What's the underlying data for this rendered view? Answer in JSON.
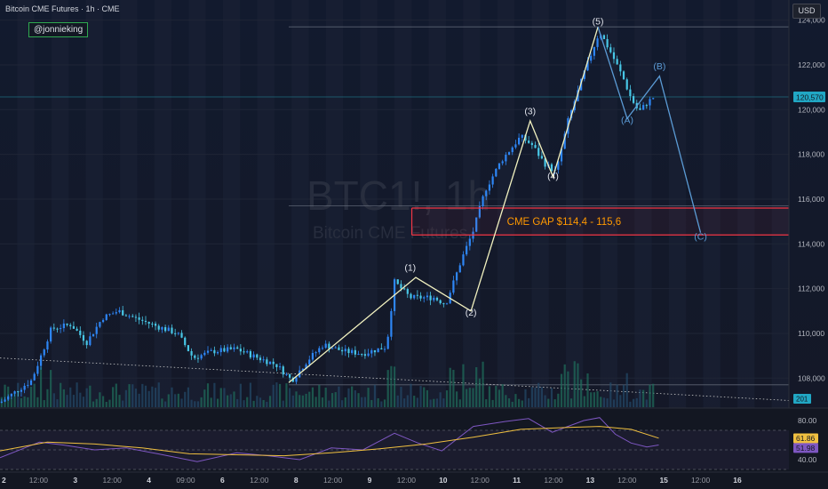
{
  "header": {
    "title": "Bitcoin CME Futures · 1h · CME",
    "author": "@jonnieking",
    "currency": "USD"
  },
  "watermark": {
    "symbol": "BTC1!, 1h",
    "name": "Bitcoin CME Futures"
  },
  "colors": {
    "bull": "#2e86f5",
    "bear": "#48c7e6",
    "wave": "#f2f2c0",
    "corrective": "#5b9bd5",
    "gap": "#f23645",
    "gap_text": "#ff9800",
    "rsi": "#7e57c2",
    "rsi_ma": "#f0c040"
  },
  "chart_data": [
    {
      "type": "candlestick",
      "symbol": "BTC1!",
      "interval": "1h",
      "ylim": [
        106700,
        124900
      ],
      "y_ticks": [
        "124,000",
        "122,000",
        "120,000",
        "118,000",
        "116,000",
        "114,000",
        "112,000",
        "110,000",
        "108,000"
      ],
      "x_ticks": [
        "2",
        "12:00",
        "3",
        "12:00",
        "4",
        "09:00",
        "6",
        "12:00",
        "8",
        "12:00",
        "9",
        "12:00",
        "10",
        "12:00",
        "11",
        "12:00",
        "13",
        "12:00",
        "15",
        "12:00",
        "16"
      ],
      "last_price": "120,570",
      "volume_label": "201",
      "price_path": [
        [
          0,
          106900
        ],
        [
          0.04,
          107900
        ],
        [
          0.065,
          110200
        ],
        [
          0.09,
          110400
        ],
        [
          0.11,
          109600
        ],
        [
          0.13,
          110700
        ],
        [
          0.15,
          111000
        ],
        [
          0.17,
          110700
        ],
        [
          0.2,
          110300
        ],
        [
          0.225,
          110000
        ],
        [
          0.245,
          108900
        ],
        [
          0.27,
          109200
        ],
        [
          0.3,
          109300
        ],
        [
          0.32,
          109000
        ],
        [
          0.35,
          108600
        ],
        [
          0.37,
          107900
        ],
        [
          0.39,
          108800
        ],
        [
          0.41,
          109500
        ],
        [
          0.435,
          109200
        ],
        [
          0.46,
          109100
        ],
        [
          0.49,
          109400
        ],
        [
          0.5,
          112300
        ],
        [
          0.52,
          111600
        ],
        [
          0.55,
          111600
        ],
        [
          0.565,
          111300
        ],
        [
          0.585,
          113300
        ],
        [
          0.6,
          114600
        ],
        [
          0.615,
          116400
        ],
        [
          0.635,
          117700
        ],
        [
          0.66,
          118800
        ],
        [
          0.675,
          118400
        ],
        [
          0.69,
          117600
        ],
        [
          0.705,
          117200
        ],
        [
          0.72,
          119500
        ],
        [
          0.74,
          121600
        ],
        [
          0.76,
          123500
        ],
        [
          0.775,
          122500
        ],
        [
          0.79,
          121400
        ],
        [
          0.8,
          120500
        ],
        [
          0.81,
          119900
        ],
        [
          0.82,
          120300
        ],
        [
          0.83,
          120600
        ]
      ],
      "wave_labels": [
        {
          "label": "(1)",
          "x": 0.52,
          "price": 112800
        },
        {
          "label": "(2)",
          "x": 0.597,
          "price": 110800
        },
        {
          "label": "(3)",
          "x": 0.672,
          "price": 119800
        },
        {
          "label": "(4)",
          "x": 0.701,
          "price": 116900
        },
        {
          "label": "(5)",
          "x": 0.758,
          "price": 123800
        },
        {
          "label": "(A)",
          "x": 0.795,
          "price": 119400
        },
        {
          "label": "(B)",
          "x": 0.836,
          "price": 121800
        },
        {
          "label": "(C)",
          "x": 0.888,
          "price": 114200
        }
      ],
      "impulse_path": [
        [
          0.366,
          107800
        ],
        [
          0.527,
          112500
        ],
        [
          0.597,
          111000
        ],
        [
          0.672,
          119500
        ],
        [
          0.701,
          117000
        ],
        [
          0.758,
          123700
        ]
      ],
      "corrective_path": [
        [
          0.758,
          123700
        ],
        [
          0.795,
          119600
        ],
        [
          0.836,
          121500
        ],
        [
          0.888,
          114500
        ]
      ],
      "gap": {
        "label": "CME GAP $114,4 - 115,6",
        "low": 114400,
        "high": 115600,
        "x_start": 0.522
      },
      "levels": [
        123700,
        120570,
        115700,
        107700
      ]
    },
    {
      "type": "line",
      "indicator": "RSI",
      "ylim": [
        30,
        90
      ],
      "y_ticks": [
        "80.00",
        "40.00"
      ],
      "value_labels": [
        "61.86",
        "51.98"
      ],
      "rsi": [
        [
          0,
          42
        ],
        [
          0.05,
          58
        ],
        [
          0.08,
          55
        ],
        [
          0.12,
          50
        ],
        [
          0.16,
          52
        ],
        [
          0.2,
          46
        ],
        [
          0.25,
          38
        ],
        [
          0.3,
          47
        ],
        [
          0.34,
          44
        ],
        [
          0.38,
          40
        ],
        [
          0.42,
          52
        ],
        [
          0.46,
          50
        ],
        [
          0.5,
          67
        ],
        [
          0.53,
          57
        ],
        [
          0.56,
          49
        ],
        [
          0.6,
          74
        ],
        [
          0.64,
          79
        ],
        [
          0.67,
          82
        ],
        [
          0.7,
          68
        ],
        [
          0.74,
          80
        ],
        [
          0.76,
          83
        ],
        [
          0.78,
          66
        ],
        [
          0.8,
          57
        ],
        [
          0.82,
          53
        ],
        [
          0.835,
          55
        ]
      ],
      "rsi_ma": [
        [
          0,
          49
        ],
        [
          0.06,
          58
        ],
        [
          0.12,
          56
        ],
        [
          0.18,
          52
        ],
        [
          0.24,
          46
        ],
        [
          0.3,
          45
        ],
        [
          0.36,
          44
        ],
        [
          0.42,
          47
        ],
        [
          0.48,
          51
        ],
        [
          0.54,
          56
        ],
        [
          0.6,
          63
        ],
        [
          0.66,
          71
        ],
        [
          0.72,
          73
        ],
        [
          0.76,
          74
        ],
        [
          0.8,
          71
        ],
        [
          0.835,
          62
        ]
      ]
    }
  ]
}
